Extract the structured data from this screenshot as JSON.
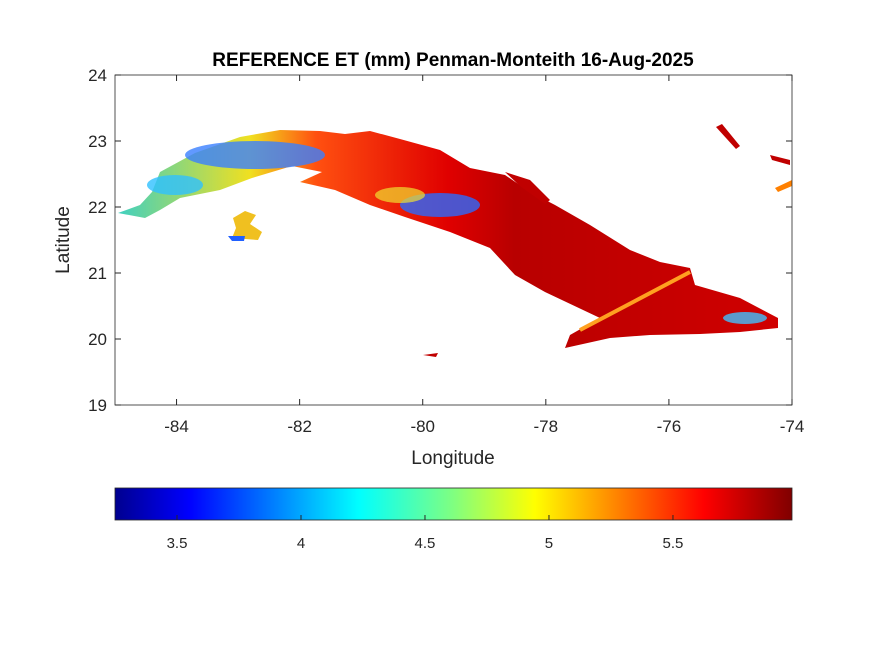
{
  "title": "REFERENCE ET (mm) Penman-Monteith 16-Aug-2025",
  "map": {
    "xlabel": "Longitude",
    "ylabel": "Latitude",
    "xlim": [
      -85,
      -74
    ],
    "ylim": [
      19,
      24
    ],
    "xticks": [
      "-84",
      "-82",
      "-80",
      "-78",
      "-76",
      "-74"
    ],
    "yticks": [
      "19",
      "20",
      "21",
      "22",
      "23",
      "24"
    ],
    "colormap": "jet"
  },
  "colorbar": {
    "location": "bottom",
    "clim": [
      3.25,
      5.98
    ],
    "ticks": [
      "3.5",
      "4",
      "4.5",
      "5",
      "5.5"
    ]
  }
}
